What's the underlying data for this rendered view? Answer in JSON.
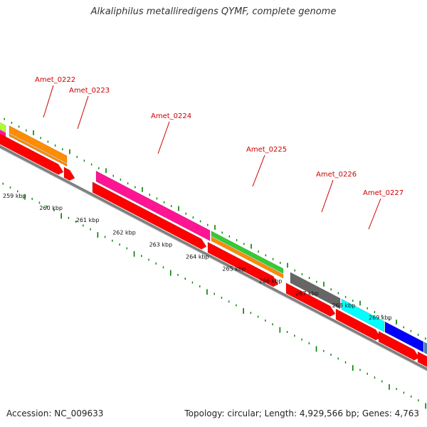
{
  "title": "Alkaliphilus metalliredigens QYMF, complete genome",
  "accession_text": "Accession: NC_009633",
  "summary_text": "Topology: circular; Length: 4,929,566 bp; Genes: 4,763",
  "colors": {
    "gene_label": "#cc0000",
    "cds_red": "#ff0000",
    "backbone": "#7f7f7f",
    "tick_green": "#007f00",
    "orange": "#ff8c00",
    "magenta": "#ff1493",
    "green": "#32cd32",
    "gray": "#666666",
    "cyan": "#00ffff",
    "blue": "#0000ff",
    "lime": "#adff2f",
    "steelblue": "#4682b4"
  },
  "genes": [
    {
      "name": "Amet_0222"
    },
    {
      "name": "Amet_0223"
    },
    {
      "name": "Amet_0224"
    },
    {
      "name": "Amet_0225"
    },
    {
      "name": "Amet_0226"
    },
    {
      "name": "Amet_0227"
    }
  ],
  "scale_labels": [
    "259 kbp",
    "260 kbp",
    "261 kbp",
    "262 kbp",
    "263 kbp",
    "264 kbp",
    "265 kbp",
    "266 kbp",
    "267 kbp",
    "268 kbp",
    "269 kbp"
  ]
}
